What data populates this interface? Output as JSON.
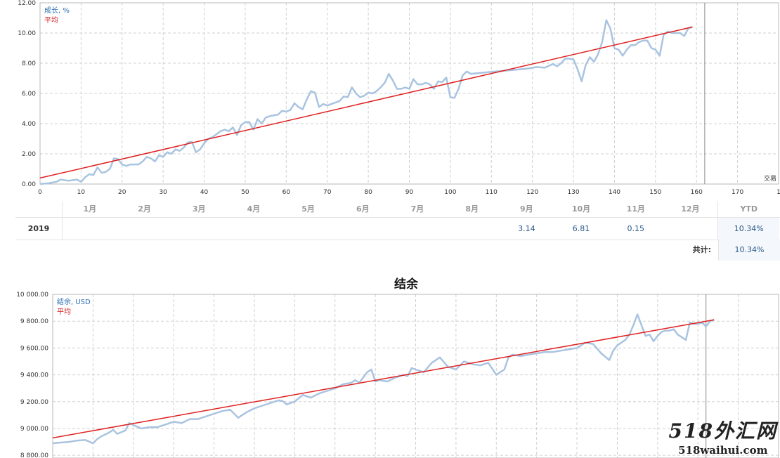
{
  "colors": {
    "series": "#a9c4e0",
    "average": "#e02020",
    "grid": "#d0d0d0",
    "legend_series": "#2a6db0",
    "legend_average": "#d02020"
  },
  "chart_data": [
    {
      "type": "line",
      "legend": [
        "成长, %",
        "平均"
      ],
      "x_axis_label": "交易",
      "x_ticks": [
        "0",
        "10",
        "20",
        "30",
        "40",
        "50",
        "60",
        "70",
        "80",
        "90",
        "100",
        "110",
        "120",
        "130",
        "140",
        "150",
        "160",
        "170",
        "1"
      ],
      "y_ticks": [
        "0.00",
        "2.00",
        "4.00",
        "6.00",
        "8.00",
        "10.00",
        "12.00"
      ],
      "xlim": [
        0,
        180
      ],
      "ylim": [
        0,
        12
      ],
      "cutoff_x": 162,
      "series": [
        {
          "name": "成长, %",
          "points": [
            [
              0,
              0
            ],
            [
              2,
              0.05
            ],
            [
              4,
              0.15
            ],
            [
              5,
              0.3
            ],
            [
              7,
              0.22
            ],
            [
              9,
              0.3
            ],
            [
              10,
              0.15
            ],
            [
              11,
              0.45
            ],
            [
              12,
              0.65
            ],
            [
              13,
              0.6
            ],
            [
              14,
              1.1
            ],
            [
              15,
              0.75
            ],
            [
              16,
              0.8
            ],
            [
              17,
              1.0
            ],
            [
              18,
              1.7
            ],
            [
              19,
              1.65
            ],
            [
              20,
              1.3
            ],
            [
              21,
              1.2
            ],
            [
              22,
              1.3
            ],
            [
              23,
              1.3
            ],
            [
              24,
              1.3
            ],
            [
              25,
              1.5
            ],
            [
              26,
              1.8
            ],
            [
              27,
              1.7
            ],
            [
              28,
              1.5
            ],
            [
              29,
              1.9
            ],
            [
              30,
              1.8
            ],
            [
              31,
              2.1
            ],
            [
              32,
              2.0
            ],
            [
              33,
              2.3
            ],
            [
              34,
              2.2
            ],
            [
              35,
              2.4
            ],
            [
              36,
              2.75
            ],
            [
              37,
              2.8
            ],
            [
              38,
              2.1
            ],
            [
              39,
              2.3
            ],
            [
              40,
              2.7
            ],
            [
              41,
              3.0
            ],
            [
              42,
              3.1
            ],
            [
              43,
              3.3
            ],
            [
              44,
              3.5
            ],
            [
              45,
              3.6
            ],
            [
              46,
              3.5
            ],
            [
              47,
              3.75
            ],
            [
              48,
              3.25
            ],
            [
              49,
              3.9
            ],
            [
              50,
              4.1
            ],
            [
              51,
              4.1
            ],
            [
              52,
              3.6
            ],
            [
              53,
              4.3
            ],
            [
              54,
              4.0
            ],
            [
              55,
              4.4
            ],
            [
              56,
              4.5
            ],
            [
              57,
              4.55
            ],
            [
              58,
              4.6
            ],
            [
              59,
              4.85
            ],
            [
              60,
              4.8
            ],
            [
              61,
              4.9
            ],
            [
              62,
              5.35
            ],
            [
              63,
              5.1
            ],
            [
              64,
              4.95
            ],
            [
              65,
              5.6
            ],
            [
              66,
              6.15
            ],
            [
              67,
              6.05
            ],
            [
              68,
              5.1
            ],
            [
              69,
              5.3
            ],
            [
              70,
              5.2
            ],
            [
              71,
              5.3
            ],
            [
              72,
              5.4
            ],
            [
              73,
              5.5
            ],
            [
              74,
              5.8
            ],
            [
              75,
              5.75
            ],
            [
              76,
              6.4
            ],
            [
              77,
              6.0
            ],
            [
              78,
              5.75
            ],
            [
              79,
              5.85
            ],
            [
              80,
              6.05
            ],
            [
              81,
              6.0
            ],
            [
              82,
              6.15
            ],
            [
              83,
              6.4
            ],
            [
              84,
              6.7
            ],
            [
              85,
              7.3
            ],
            [
              86,
              6.85
            ],
            [
              87,
              6.3
            ],
            [
              88,
              6.3
            ],
            [
              89,
              6.4
            ],
            [
              90,
              6.3
            ],
            [
              91,
              6.95
            ],
            [
              92,
              6.6
            ],
            [
              93,
              6.6
            ],
            [
              94,
              6.7
            ],
            [
              95,
              6.6
            ],
            [
              96,
              6.3
            ],
            [
              97,
              6.8
            ],
            [
              98,
              6.75
            ],
            [
              99,
              7.05
            ],
            [
              100,
              5.75
            ],
            [
              101,
              5.7
            ],
            [
              102,
              6.3
            ],
            [
              103,
              7.2
            ],
            [
              104,
              7.45
            ],
            [
              105,
              7.3
            ],
            [
              107,
              7.35
            ],
            [
              109,
              7.4
            ],
            [
              111,
              7.45
            ],
            [
              113,
              7.5
            ],
            [
              115,
              7.55
            ],
            [
              117,
              7.6
            ],
            [
              119,
              7.65
            ],
            [
              121,
              7.75
            ],
            [
              123,
              7.7
            ],
            [
              125,
              7.95
            ],
            [
              126,
              7.8
            ],
            [
              127,
              8.0
            ],
            [
              128,
              8.3
            ],
            [
              129,
              8.3
            ],
            [
              130,
              8.25
            ],
            [
              131,
              7.6
            ],
            [
              132,
              6.8
            ],
            [
              133,
              7.9
            ],
            [
              134,
              8.4
            ],
            [
              135,
              8.1
            ],
            [
              136,
              8.6
            ],
            [
              137,
              9.4
            ],
            [
              138,
              10.85
            ],
            [
              139,
              10.3
            ],
            [
              140,
              9.0
            ],
            [
              141,
              8.9
            ],
            [
              142,
              8.5
            ],
            [
              143,
              8.9
            ],
            [
              144,
              9.2
            ],
            [
              145,
              9.2
            ],
            [
              146,
              9.4
            ],
            [
              147,
              9.5
            ],
            [
              148,
              9.5
            ],
            [
              149,
              9.0
            ],
            [
              150,
              8.9
            ],
            [
              151,
              8.5
            ],
            [
              152,
              9.9
            ],
            [
              153,
              10.1
            ],
            [
              154,
              10.0
            ],
            [
              155,
              10.0
            ],
            [
              156,
              10.0
            ],
            [
              157,
              9.8
            ],
            [
              158,
              10.3
            ],
            [
              159,
              10.4
            ]
          ]
        },
        {
          "name": "平均",
          "points": [
            [
              0,
              0.4
            ],
            [
              159,
              10.4
            ]
          ]
        }
      ]
    },
    {
      "type": "line",
      "title": "结余",
      "legend": [
        "结余, USD",
        "平均"
      ],
      "y_ticks": [
        "8 800.00",
        "9 000.00",
        "9 200.00",
        "9 400.00",
        "9 600.00",
        "9 800.00",
        "10 000.00"
      ],
      "ylim": [
        8780,
        10000
      ],
      "xlim": [
        0,
        180
      ],
      "cutoff_x": 162,
      "series": [
        {
          "name": "结余, USD",
          "points": [
            [
              0,
              8890
            ],
            [
              2,
              8895
            ],
            [
              4,
              8900
            ],
            [
              6,
              8910
            ],
            [
              8,
              8915
            ],
            [
              10,
              8890
            ],
            [
              11,
              8920
            ],
            [
              12,
              8940
            ],
            [
              14,
              8970
            ],
            [
              15,
              8990
            ],
            [
              16,
              8960
            ],
            [
              18,
              8985
            ],
            [
              19,
              9040
            ],
            [
              20,
              9025
            ],
            [
              22,
              9000
            ],
            [
              24,
              9010
            ],
            [
              26,
              9010
            ],
            [
              28,
              9030
            ],
            [
              30,
              9050
            ],
            [
              32,
              9040
            ],
            [
              34,
              9070
            ],
            [
              36,
              9070
            ],
            [
              38,
              9090
            ],
            [
              40,
              9110
            ],
            [
              42,
              9130
            ],
            [
              44,
              9140
            ],
            [
              46,
              9080
            ],
            [
              48,
              9120
            ],
            [
              50,
              9150
            ],
            [
              52,
              9170
            ],
            [
              54,
              9190
            ],
            [
              56,
              9210
            ],
            [
              57,
              9205
            ],
            [
              58,
              9180
            ],
            [
              60,
              9200
            ],
            [
              62,
              9250
            ],
            [
              64,
              9230
            ],
            [
              66,
              9260
            ],
            [
              68,
              9280
            ],
            [
              70,
              9300
            ],
            [
              72,
              9330
            ],
            [
              74,
              9340
            ],
            [
              75,
              9360
            ],
            [
              76,
              9340
            ],
            [
              78,
              9420
            ],
            [
              79,
              9440
            ],
            [
              80,
              9350
            ],
            [
              81,
              9360
            ],
            [
              83,
              9350
            ],
            [
              85,
              9380
            ],
            [
              87,
              9400
            ],
            [
              88,
              9390
            ],
            [
              89,
              9450
            ],
            [
              90,
              9440
            ],
            [
              92,
              9420
            ],
            [
              94,
              9490
            ],
            [
              96,
              9530
            ],
            [
              98,
              9460
            ],
            [
              100,
              9440
            ],
            [
              102,
              9500
            ],
            [
              104,
              9480
            ],
            [
              106,
              9470
            ],
            [
              108,
              9490
            ],
            [
              110,
              9400
            ],
            [
              112,
              9440
            ],
            [
              113,
              9530
            ],
            [
              114,
              9550
            ],
            [
              116,
              9540
            ],
            [
              118,
              9550
            ],
            [
              120,
              9560
            ],
            [
              122,
              9570
            ],
            [
              124,
              9570
            ],
            [
              126,
              9580
            ],
            [
              128,
              9590
            ],
            [
              130,
              9600
            ],
            [
              132,
              9640
            ],
            [
              134,
              9630
            ],
            [
              136,
              9560
            ],
            [
              138,
              9510
            ],
            [
              139,
              9580
            ],
            [
              140,
              9620
            ],
            [
              142,
              9660
            ],
            [
              143,
              9700
            ],
            [
              144,
              9770
            ],
            [
              145,
              9850
            ],
            [
              146,
              9770
            ],
            [
              147,
              9690
            ],
            [
              148,
              9700
            ],
            [
              149,
              9650
            ],
            [
              150,
              9690
            ],
            [
              151,
              9720
            ],
            [
              152,
              9730
            ],
            [
              153,
              9730
            ],
            [
              154,
              9740
            ],
            [
              155,
              9700
            ],
            [
              156,
              9680
            ],
            [
              157,
              9660
            ],
            [
              158,
              9790
            ],
            [
              159,
              9780
            ],
            [
              160,
              9780
            ],
            [
              161,
              9790
            ],
            [
              162,
              9760
            ],
            [
              163,
              9800
            ],
            [
              164,
              9810
            ]
          ]
        },
        {
          "name": "平均",
          "points": [
            [
              0,
              8930
            ],
            [
              164,
              9810
            ]
          ]
        }
      ]
    }
  ],
  "table": {
    "months": [
      "1月",
      "2月",
      "3月",
      "4月",
      "5月",
      "6月",
      "7月",
      "8月",
      "9月",
      "10月",
      "11月",
      "12月"
    ],
    "ytd_header": "YTD",
    "year": "2019",
    "values": [
      "",
      "",
      "",
      "",
      "",
      "",
      "",
      "",
      "3.14",
      "6.81",
      "0.15",
      ""
    ],
    "ytd": "10.34%",
    "total_label": "共计:",
    "total": "10.34%"
  },
  "watermark": {
    "line1": "518外汇网",
    "line2": "518waihui.com"
  }
}
